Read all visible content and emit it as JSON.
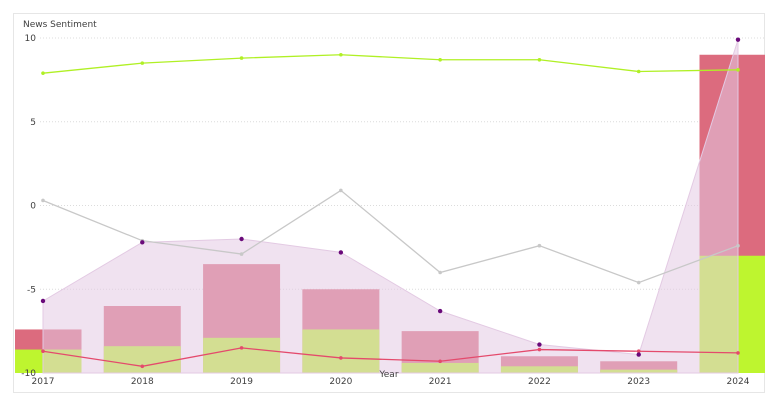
{
  "chart_data": {
    "type": "bar",
    "title": "",
    "xlabel": "Year",
    "ylabel": "News Sentiment",
    "ylim": [
      -10,
      10
    ],
    "yticks": [
      10,
      5,
      0,
      -5,
      -10
    ],
    "categories": [
      "2017",
      "2018",
      "2019",
      "2020",
      "2021",
      "2022",
      "2023",
      "2024"
    ],
    "stacked_bars": [
      {
        "color": "#bef52f",
        "values": [
          -8.6,
          -8.4,
          -7.9,
          -7.4,
          -9.4,
          -9.6,
          -9.8,
          -3.0
        ]
      },
      {
        "color": "#dc6b7e",
        "values": [
          -7.4,
          -6.0,
          -3.5,
          -5.0,
          -7.5,
          -9.0,
          -9.3,
          9.0
        ]
      }
    ],
    "area": {
      "color": "#e3cae3",
      "values": [
        -5.7,
        -2.2,
        -2.0,
        -2.8,
        -6.3,
        -8.3,
        -8.9,
        9.9
      ]
    },
    "lines": [
      {
        "color": "#c8c8c8",
        "values": [
          0.3,
          -2.1,
          -2.9,
          0.9,
          -4.0,
          -2.4,
          -4.6,
          -2.4
        ]
      },
      {
        "color": "#b0f025",
        "values": [
          7.9,
          8.5,
          8.8,
          9.0,
          8.7,
          8.7,
          8.0,
          8.1
        ]
      },
      {
        "color": "#e44a6c",
        "values": [
          -8.7,
          -9.6,
          -8.5,
          -9.1,
          -9.3,
          -8.6,
          -8.7,
          -8.8
        ]
      }
    ],
    "point_color": "#6a0a7a",
    "grid": true,
    "legend": "none"
  }
}
